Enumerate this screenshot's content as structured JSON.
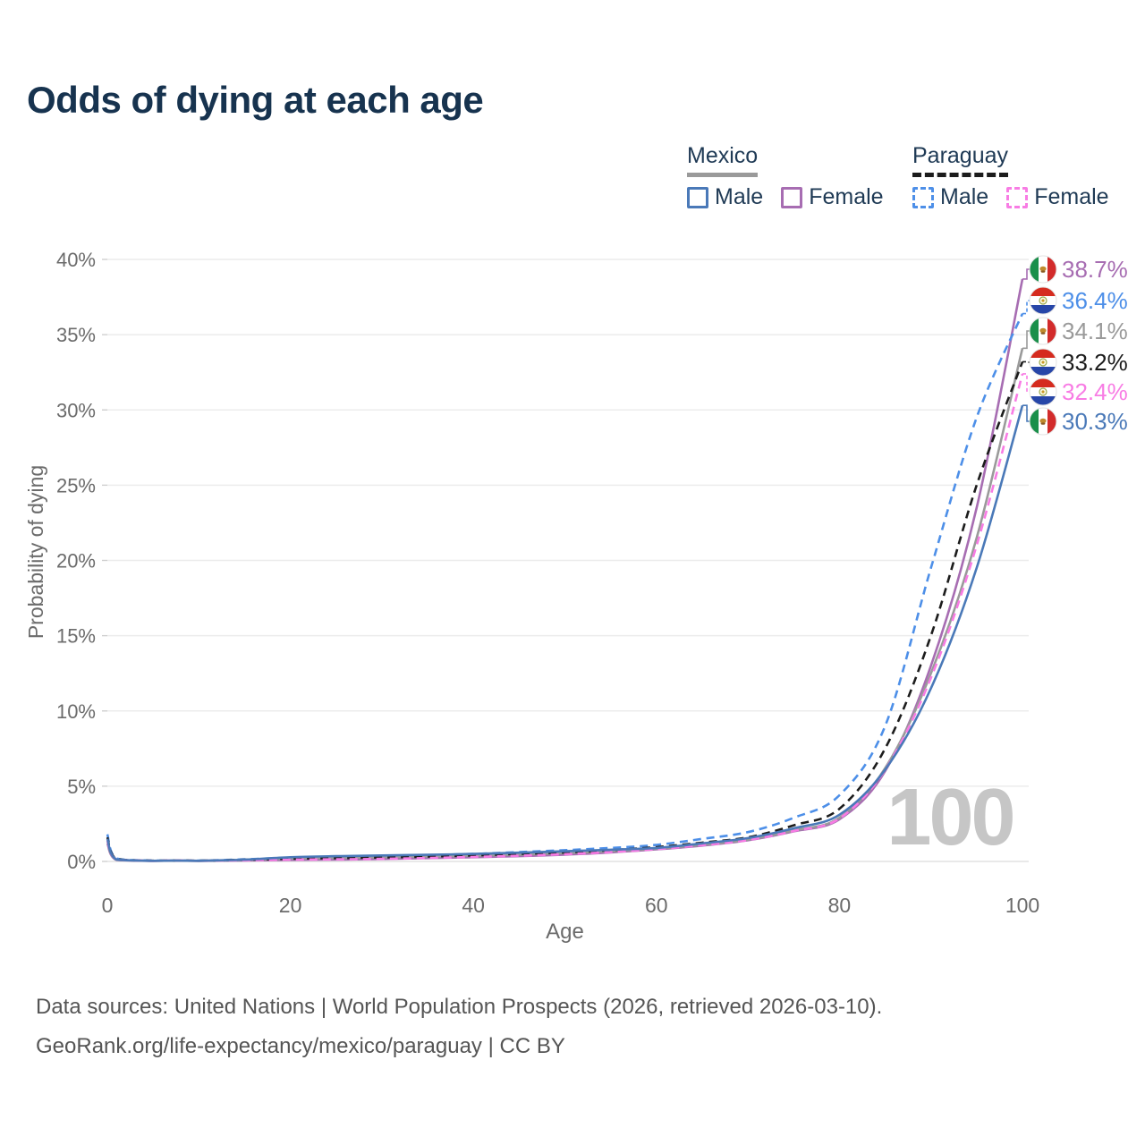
{
  "title": "Odds of dying at each age",
  "legend": {
    "mexico": {
      "label": "Mexico",
      "male": "Male",
      "female": "Female"
    },
    "paraguay": {
      "label": "Paraguay",
      "male": "Male",
      "female": "Female"
    }
  },
  "footer": {
    "line1": "Data sources: United Nations | World Population Prospects (2026, retrieved 2026-03-10).",
    "line2": "GeoRank.org/life-expectancy/mexico/paraguay | CC BY"
  },
  "colors": {
    "mexico_male": "#4a79b8",
    "mexico_female": "#a76db2",
    "mexico_both": "#9a9a9a",
    "paraguay_male": "#4d8fe8",
    "paraguay_female": "#f87ce4",
    "paraguay_both": "#1c1c1c",
    "title_text": "#17334f",
    "axis_text": "#6b6b6b",
    "grid": "#ececec",
    "zero_line": "#e2e2e2",
    "watermark_text": "#c6c6c6",
    "flag_mexico_green": "#1a8f4a",
    "flag_mexico_red": "#d22b2b",
    "flag_paraguay_red": "#d52b1e",
    "flag_paraguay_blue": "#2746a8"
  },
  "chart_data": {
    "type": "line",
    "title": "Odds of dying at each age",
    "xlabel": "Age",
    "ylabel": "Probability of dying",
    "xlim": [
      0,
      100
    ],
    "ylim": [
      0,
      40
    ],
    "grid": true,
    "legend_position": "top-right",
    "hover_age_indicator": "100",
    "x_ticks": [
      "0",
      "20",
      "40",
      "60",
      "80",
      "100"
    ],
    "x_tick_values": [
      0,
      20,
      40,
      60,
      80,
      100
    ],
    "y_ticks": [
      "0%",
      "5%",
      "10%",
      "15%",
      "20%",
      "25%",
      "30%",
      "35%",
      "40%"
    ],
    "y_tick_values": [
      0,
      5,
      10,
      15,
      20,
      25,
      30,
      35,
      40
    ],
    "ages": [
      0,
      1,
      5,
      10,
      15,
      20,
      25,
      30,
      35,
      40,
      45,
      50,
      55,
      60,
      65,
      70,
      75,
      80,
      85,
      90,
      95,
      100
    ],
    "unit": "percent",
    "series": [
      {
        "id": "mexico-female",
        "name": "Mexico Female",
        "country": "Mexico",
        "sex": "female",
        "style": "solid",
        "color": "#a76db2",
        "end_value": 38.7,
        "end_label": "38.7%",
        "flag": "mx",
        "values": [
          1.2,
          0.1,
          0.03,
          0.03,
          0.06,
          0.1,
          0.12,
          0.16,
          0.22,
          0.28,
          0.35,
          0.45,
          0.6,
          0.8,
          1.05,
          1.4,
          2.0,
          2.8,
          6.0,
          13.0,
          23.5,
          38.7
        ]
      },
      {
        "id": "paraguay-male",
        "name": "Paraguay Male",
        "country": "Paraguay",
        "sex": "male",
        "style": "dashed",
        "color": "#4d8fe8",
        "end_value": 36.4,
        "end_label": "36.4%",
        "flag": "py",
        "values": [
          1.8,
          0.2,
          0.06,
          0.06,
          0.14,
          0.25,
          0.3,
          0.35,
          0.42,
          0.5,
          0.62,
          0.75,
          0.9,
          1.1,
          1.5,
          1.95,
          2.9,
          4.4,
          9.0,
          19.5,
          29.5,
          36.4
        ]
      },
      {
        "id": "mexico-both",
        "name": "Mexico",
        "country": "Mexico",
        "sex": "both",
        "style": "solid",
        "color": "#9a9a9a",
        "end_value": 34.1,
        "end_label": "34.1%",
        "flag": "mx",
        "values": [
          1.35,
          0.12,
          0.04,
          0.04,
          0.1,
          0.19,
          0.23,
          0.28,
          0.33,
          0.38,
          0.45,
          0.55,
          0.68,
          0.85,
          1.1,
          1.45,
          2.05,
          2.9,
          6.2,
          12.5,
          21.5,
          34.1
        ]
      },
      {
        "id": "paraguay-both",
        "name": "Paraguay",
        "country": "Paraguay",
        "sex": "both",
        "style": "dashed",
        "color": "#1c1c1c",
        "end_value": 33.2,
        "end_label": "33.2%",
        "flag": "py",
        "values": [
          1.6,
          0.17,
          0.05,
          0.05,
          0.11,
          0.18,
          0.22,
          0.26,
          0.32,
          0.4,
          0.5,
          0.6,
          0.75,
          0.95,
          1.25,
          1.6,
          2.4,
          3.5,
          7.5,
          15.0,
          25.0,
          33.2
        ]
      },
      {
        "id": "paraguay-female",
        "name": "Paraguay Female",
        "country": "Paraguay",
        "sex": "female",
        "style": "dashed",
        "color": "#f87ce4",
        "end_value": 32.4,
        "end_label": "32.4%",
        "flag": "py",
        "values": [
          1.4,
          0.14,
          0.04,
          0.04,
          0.07,
          0.12,
          0.14,
          0.17,
          0.23,
          0.3,
          0.38,
          0.48,
          0.62,
          0.82,
          1.08,
          1.42,
          2.02,
          2.85,
          6.1,
          12.2,
          21.0,
          32.4
        ]
      },
      {
        "id": "mexico-male",
        "name": "Mexico Male",
        "country": "Mexico",
        "sex": "male",
        "style": "solid",
        "color": "#4a79b8",
        "end_value": 30.3,
        "end_label": "30.3%",
        "flag": "mx",
        "values": [
          1.5,
          0.13,
          0.04,
          0.04,
          0.12,
          0.28,
          0.35,
          0.4,
          0.44,
          0.5,
          0.58,
          0.68,
          0.78,
          0.9,
          1.2,
          1.55,
          2.2,
          3.1,
          6.1,
          11.5,
          19.5,
          30.3
        ]
      }
    ]
  }
}
